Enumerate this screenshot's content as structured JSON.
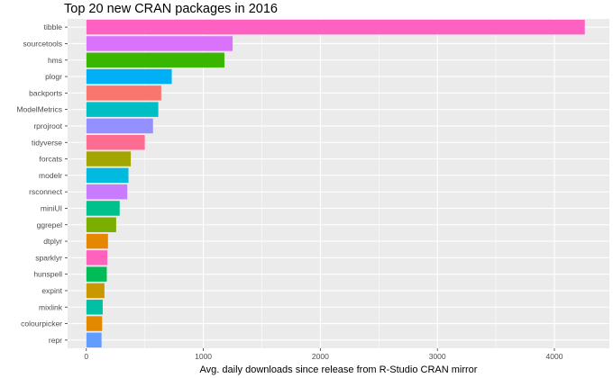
{
  "chart_data": {
    "type": "bar",
    "orientation": "horizontal",
    "title": "Top 20 new CRAN packages in 2016",
    "xlabel": "Avg. daily downloads since release from R-Studio CRAN mirror",
    "ylabel": "",
    "xlim": [
      -160,
      4470
    ],
    "xticks": [
      0,
      1000,
      2000,
      3000,
      4000
    ],
    "grid": true,
    "legend": "none",
    "background": "#ebebeb",
    "grid_color": "#ffffff",
    "categories": [
      "tibble",
      "sourcetools",
      "hms",
      "plogr",
      "backports",
      "ModelMetrics",
      "rprojroot",
      "tidyverse",
      "forcats",
      "modelr",
      "rsconnect",
      "miniUI",
      "ggrepel",
      "dtplyr",
      "sparklyr",
      "hunspell",
      "expint",
      "mixlink",
      "colourpicker",
      "repr"
    ],
    "values": [
      4260,
      1250,
      1180,
      730,
      640,
      615,
      570,
      500,
      380,
      360,
      350,
      285,
      255,
      185,
      180,
      175,
      155,
      140,
      135,
      130
    ],
    "colors": [
      "#FF61C3",
      "#DB72FB",
      "#39B600",
      "#00B0F6",
      "#F8766D",
      "#00BFC4",
      "#9590FF",
      "#FF6C91",
      "#A3A500",
      "#00BAE0",
      "#C77CFF",
      "#00C08B",
      "#7CAE00",
      "#E58700",
      "#FF62BC",
      "#00BC56",
      "#C99800",
      "#00C1A3",
      "#E38900",
      "#619CFF"
    ]
  }
}
